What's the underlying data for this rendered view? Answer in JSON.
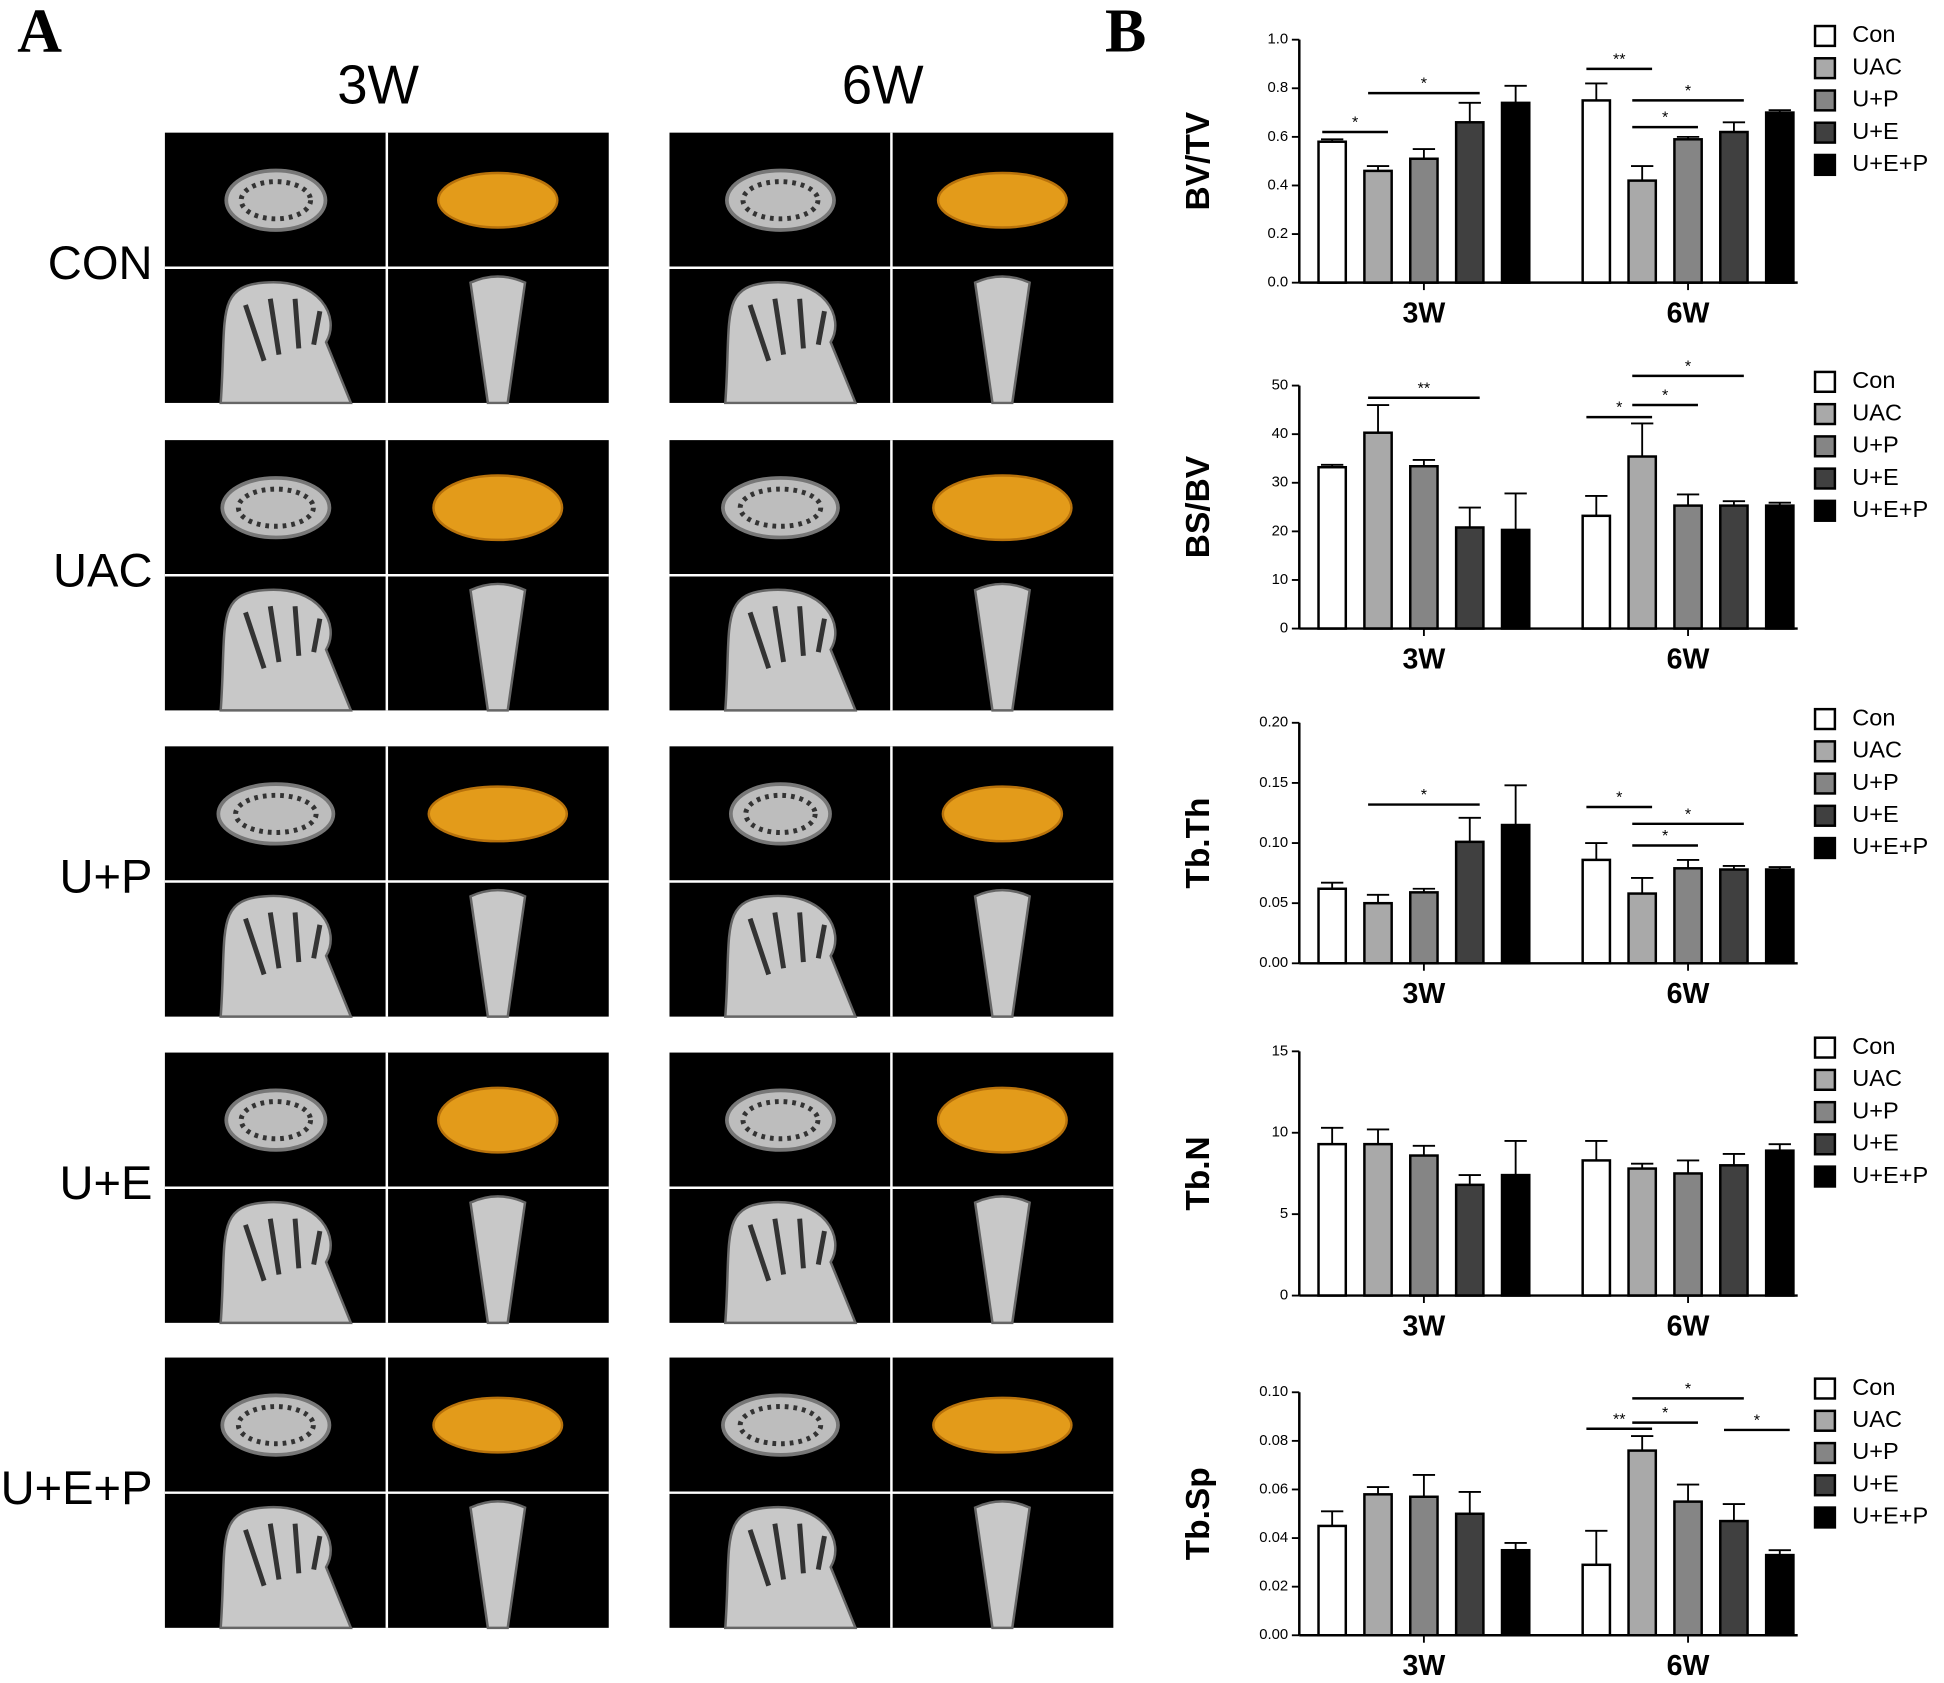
{
  "panel_a": {
    "label": "A",
    "columns": [
      "3W",
      "6W"
    ],
    "rows": [
      "CON",
      "UAC",
      "U+P",
      "U+E",
      "U+E+P"
    ]
  },
  "panel_b": {
    "label": "B"
  },
  "chart_data": [
    {
      "type": "bar",
      "y_label": "BV/TV",
      "categories": [
        "3W",
        "6W"
      ],
      "ylim": [
        0,
        1.0
      ],
      "yticks": [
        {
          "value": 0,
          "label": "0.0"
        },
        0.2,
        0.4,
        0.6,
        0.8,
        {
          "value": 1.0,
          "label": "1.0"
        }
      ],
      "series": [
        {
          "name": "Con",
          "color": "#ffffff",
          "values": [
            0.58,
            0.75
          ],
          "errors": [
            0.01,
            0.07
          ]
        },
        {
          "name": "UAC",
          "color": "#a9a9a9",
          "values": [
            0.46,
            0.42
          ],
          "errors": [
            0.02,
            0.06
          ]
        },
        {
          "name": "U+P",
          "color": "#858585",
          "values": [
            0.51,
            0.59
          ],
          "errors": [
            0.04,
            0.01
          ]
        },
        {
          "name": "U+E",
          "color": "#404040",
          "values": [
            0.66,
            0.62
          ],
          "errors": [
            0.08,
            0.04
          ]
        },
        {
          "name": "U+E+P",
          "color": "#000000",
          "values": [
            0.74,
            0.7
          ],
          "errors": [
            0.07,
            0.01
          ]
        }
      ],
      "annotations": [
        {
          "text": "*",
          "category": "3W",
          "from": "Con",
          "to": "UAC",
          "y": 0.62
        },
        {
          "text": "*",
          "category": "3W",
          "from": "UAC",
          "to": "U+E",
          "y": 0.78
        },
        {
          "text": "**",
          "category": "6W",
          "from": "Con",
          "to": "UAC",
          "y": 0.88
        },
        {
          "text": "*",
          "category": "6W",
          "from": "UAC",
          "to": "U+P",
          "y": 0.64
        },
        {
          "text": "*",
          "category": "6W",
          "from": "UAC",
          "to": "U+E",
          "y": 0.75
        }
      ]
    },
    {
      "type": "bar",
      "y_label": "BS/BV",
      "categories": [
        "3W",
        "6W"
      ],
      "ylim": [
        0,
        50
      ],
      "yticks": [
        0,
        10,
        20,
        30,
        40,
        50
      ],
      "series": [
        {
          "name": "Con",
          "color": "#ffffff",
          "values": [
            33.2,
            23.2
          ],
          "errors": [
            0.5,
            4.1
          ]
        },
        {
          "name": "UAC",
          "color": "#a9a9a9",
          "values": [
            40.3,
            35.4
          ],
          "errors": [
            5.7,
            6.8
          ]
        },
        {
          "name": "U+P",
          "color": "#858585",
          "values": [
            33.4,
            25.3
          ],
          "errors": [
            1.3,
            2.3
          ]
        },
        {
          "name": "U+E",
          "color": "#404040",
          "values": [
            20.8,
            25.3
          ],
          "errors": [
            4.1,
            0.9
          ]
        },
        {
          "name": "U+E+P",
          "color": "#000000",
          "values": [
            20.3,
            25.3
          ],
          "errors": [
            7.5,
            0.6
          ]
        }
      ],
      "annotations": [
        {
          "text": "**",
          "category": "3W",
          "from": "UAC",
          "to": "U+E",
          "y": 47.5
        },
        {
          "text": "*",
          "category": "6W",
          "from": "Con",
          "to": "UAC",
          "y": 43.5
        },
        {
          "text": "*",
          "category": "6W",
          "from": "UAC",
          "to": "U+P",
          "y": 46
        },
        {
          "text": "*",
          "category": "6W",
          "from": "UAC",
          "to": "U+E",
          "y": 52
        }
      ]
    },
    {
      "type": "bar",
      "y_label": "Tb.Th",
      "categories": [
        "3W",
        "6W"
      ],
      "ylim": [
        0,
        0.2
      ],
      "yticks": [
        {
          "value": 0,
          "label": "0.00"
        },
        0.05,
        {
          "value": 0.1,
          "label": "0.10"
        },
        0.15,
        {
          "value": 0.2,
          "label": "0.20"
        }
      ],
      "series": [
        {
          "name": "Con",
          "color": "#ffffff",
          "values": [
            0.062,
            0.086
          ],
          "errors": [
            0.005,
            0.014
          ]
        },
        {
          "name": "UAC",
          "color": "#a9a9a9",
          "values": [
            0.05,
            0.058
          ],
          "errors": [
            0.007,
            0.013
          ]
        },
        {
          "name": "U+P",
          "color": "#858585",
          "values": [
            0.059,
            0.079
          ],
          "errors": [
            0.003,
            0.007
          ]
        },
        {
          "name": "U+E",
          "color": "#404040",
          "values": [
            0.101,
            0.078
          ],
          "errors": [
            0.02,
            0.003
          ]
        },
        {
          "name": "U+E+P",
          "color": "#000000",
          "values": [
            0.115,
            0.078
          ],
          "errors": [
            0.033,
            0.002
          ]
        }
      ],
      "annotations": [
        {
          "text": "*",
          "category": "3W",
          "from": "UAC",
          "to": "U+E",
          "y": 0.132
        },
        {
          "text": "*",
          "category": "6W",
          "from": "Con",
          "to": "UAC",
          "y": 0.13
        },
        {
          "text": "*",
          "category": "6W",
          "from": "UAC",
          "to": "U+P",
          "y": 0.098
        },
        {
          "text": "*",
          "category": "6W",
          "from": "UAC",
          "to": "U+E",
          "y": 0.116
        }
      ]
    },
    {
      "type": "bar",
      "y_label": "Tb.N",
      "categories": [
        "3W",
        "6W"
      ],
      "ylim": [
        0,
        15
      ],
      "yticks": [
        0,
        5,
        10,
        15
      ],
      "series": [
        {
          "name": "Con",
          "color": "#ffffff",
          "values": [
            9.3,
            8.3
          ],
          "errors": [
            1.0,
            1.2
          ]
        },
        {
          "name": "UAC",
          "color": "#a9a9a9",
          "values": [
            9.3,
            7.8
          ],
          "errors": [
            0.9,
            0.3
          ]
        },
        {
          "name": "U+P",
          "color": "#858585",
          "values": [
            8.6,
            7.5
          ],
          "errors": [
            0.6,
            0.8
          ]
        },
        {
          "name": "U+E",
          "color": "#404040",
          "values": [
            6.8,
            8.0
          ],
          "errors": [
            0.6,
            0.7
          ]
        },
        {
          "name": "U+E+P",
          "color": "#000000",
          "values": [
            7.4,
            8.9
          ],
          "errors": [
            2.1,
            0.4
          ]
        }
      ],
      "annotations": []
    },
    {
      "type": "bar",
      "y_label": "Tb.Sp",
      "categories": [
        "3W",
        "6W"
      ],
      "ylim": [
        0,
        0.1
      ],
      "yticks": [
        {
          "value": 0,
          "label": "0.00"
        },
        0.02,
        0.04,
        0.06,
        0.08,
        {
          "value": 0.1,
          "label": "0.10"
        }
      ],
      "series": [
        {
          "name": "Con",
          "color": "#ffffff",
          "values": [
            0.045,
            0.029
          ],
          "errors": [
            0.006,
            0.014
          ]
        },
        {
          "name": "UAC",
          "color": "#a9a9a9",
          "values": [
            0.058,
            0.076
          ],
          "errors": [
            0.003,
            0.006
          ]
        },
        {
          "name": "U+P",
          "color": "#858585",
          "values": [
            0.057,
            0.055
          ],
          "errors": [
            0.009,
            0.007
          ]
        },
        {
          "name": "U+E",
          "color": "#404040",
          "values": [
            0.05,
            0.047
          ],
          "errors": [
            0.009,
            0.007
          ]
        },
        {
          "name": "U+E+P",
          "color": "#000000",
          "values": [
            0.035,
            0.033
          ],
          "errors": [
            0.003,
            0.002
          ]
        }
      ],
      "annotations": [
        {
          "text": "**",
          "category": "6W",
          "from": "Con",
          "to": "UAC",
          "y": 0.085
        },
        {
          "text": "*",
          "category": "6W",
          "from": "UAC",
          "to": "U+P",
          "y": 0.0875
        },
        {
          "text": "*",
          "category": "6W",
          "from": "UAC",
          "to": "U+E",
          "y": 0.0975
        },
        {
          "text": "*",
          "category": "6W",
          "from": "U+E",
          "to": "U+E+P",
          "y": 0.0845
        }
      ]
    }
  ]
}
